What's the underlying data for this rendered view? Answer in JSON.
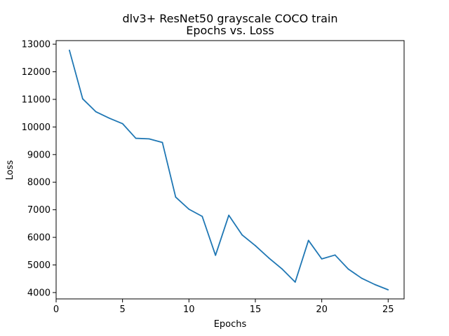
{
  "chart_data": {
    "type": "line",
    "title": "dlv3+ ResNet50 grayscale COCO train",
    "subtitle": "Epochs vs. Loss",
    "xlabel": "Epochs",
    "ylabel": "Loss",
    "xlim": [
      0,
      26.2
    ],
    "ylim": [
      3770,
      13130
    ],
    "xticks": [
      0,
      5,
      10,
      15,
      20,
      25
    ],
    "yticks": [
      4000,
      5000,
      6000,
      7000,
      8000,
      9000,
      10000,
      11000,
      12000,
      13000
    ],
    "grid": false,
    "line_color": "#1f77b4",
    "series": [
      {
        "x": [
          1,
          2,
          3,
          4,
          5,
          6,
          7,
          8,
          9,
          10,
          11,
          12,
          13,
          14,
          15,
          16,
          17,
          18,
          19,
          20,
          21,
          22,
          23,
          24,
          25
        ],
        "values": [
          12780,
          11020,
          10550,
          10320,
          10120,
          9590,
          9570,
          9440,
          7460,
          7020,
          6760,
          5350,
          6800,
          6090,
          5700,
          5260,
          4860,
          4380,
          5890,
          5220,
          5360,
          4850,
          4520,
          4290,
          4100
        ]
      }
    ]
  }
}
